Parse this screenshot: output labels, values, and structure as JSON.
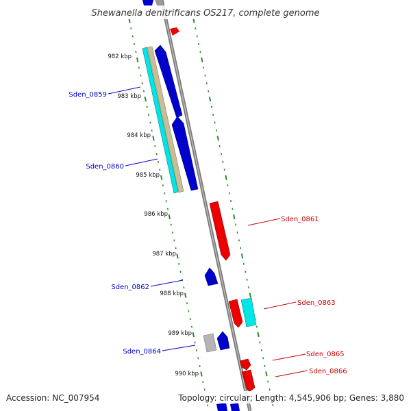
{
  "title": "Shewanella denitrificans OS217, complete genome",
  "accession_text": "Accession: NC_007954",
  "summary_text": "Topology: circular; Length: 4,545,906 bp; Genes: 3,880",
  "ticks": [
    "982 kbp",
    "983 kbp",
    "984 kbp",
    "985 kbp",
    "986 kbp",
    "987 kbp",
    "988 kbp",
    "989 kbp",
    "990 kbp"
  ],
  "genes_left": [
    {
      "name": "Sden_0859",
      "color": "#0000cc"
    },
    {
      "name": "Sden_0860",
      "color": "#0000cc"
    },
    {
      "name": "Sden_0862",
      "color": "#0000cc"
    },
    {
      "name": "Sden_0864",
      "color": "#0000cc"
    }
  ],
  "genes_right": [
    {
      "name": "Sden_0861",
      "color": "#cc0000"
    },
    {
      "name": "Sden_0863",
      "color": "#cc0000"
    },
    {
      "name": "Sden_0865",
      "color": "#cc0000"
    },
    {
      "name": "Sden_0866",
      "color": "#cc0000"
    }
  ],
  "colors": {
    "forward_gene": "#cc0000",
    "reverse_gene": "#0000cc",
    "backbone": "#888888",
    "tick_marks": "#2a8a2a",
    "cyan_feature": "#00e5e5",
    "tan_feature": "#b8ad88",
    "gray_feature": "#b4b4b4"
  }
}
